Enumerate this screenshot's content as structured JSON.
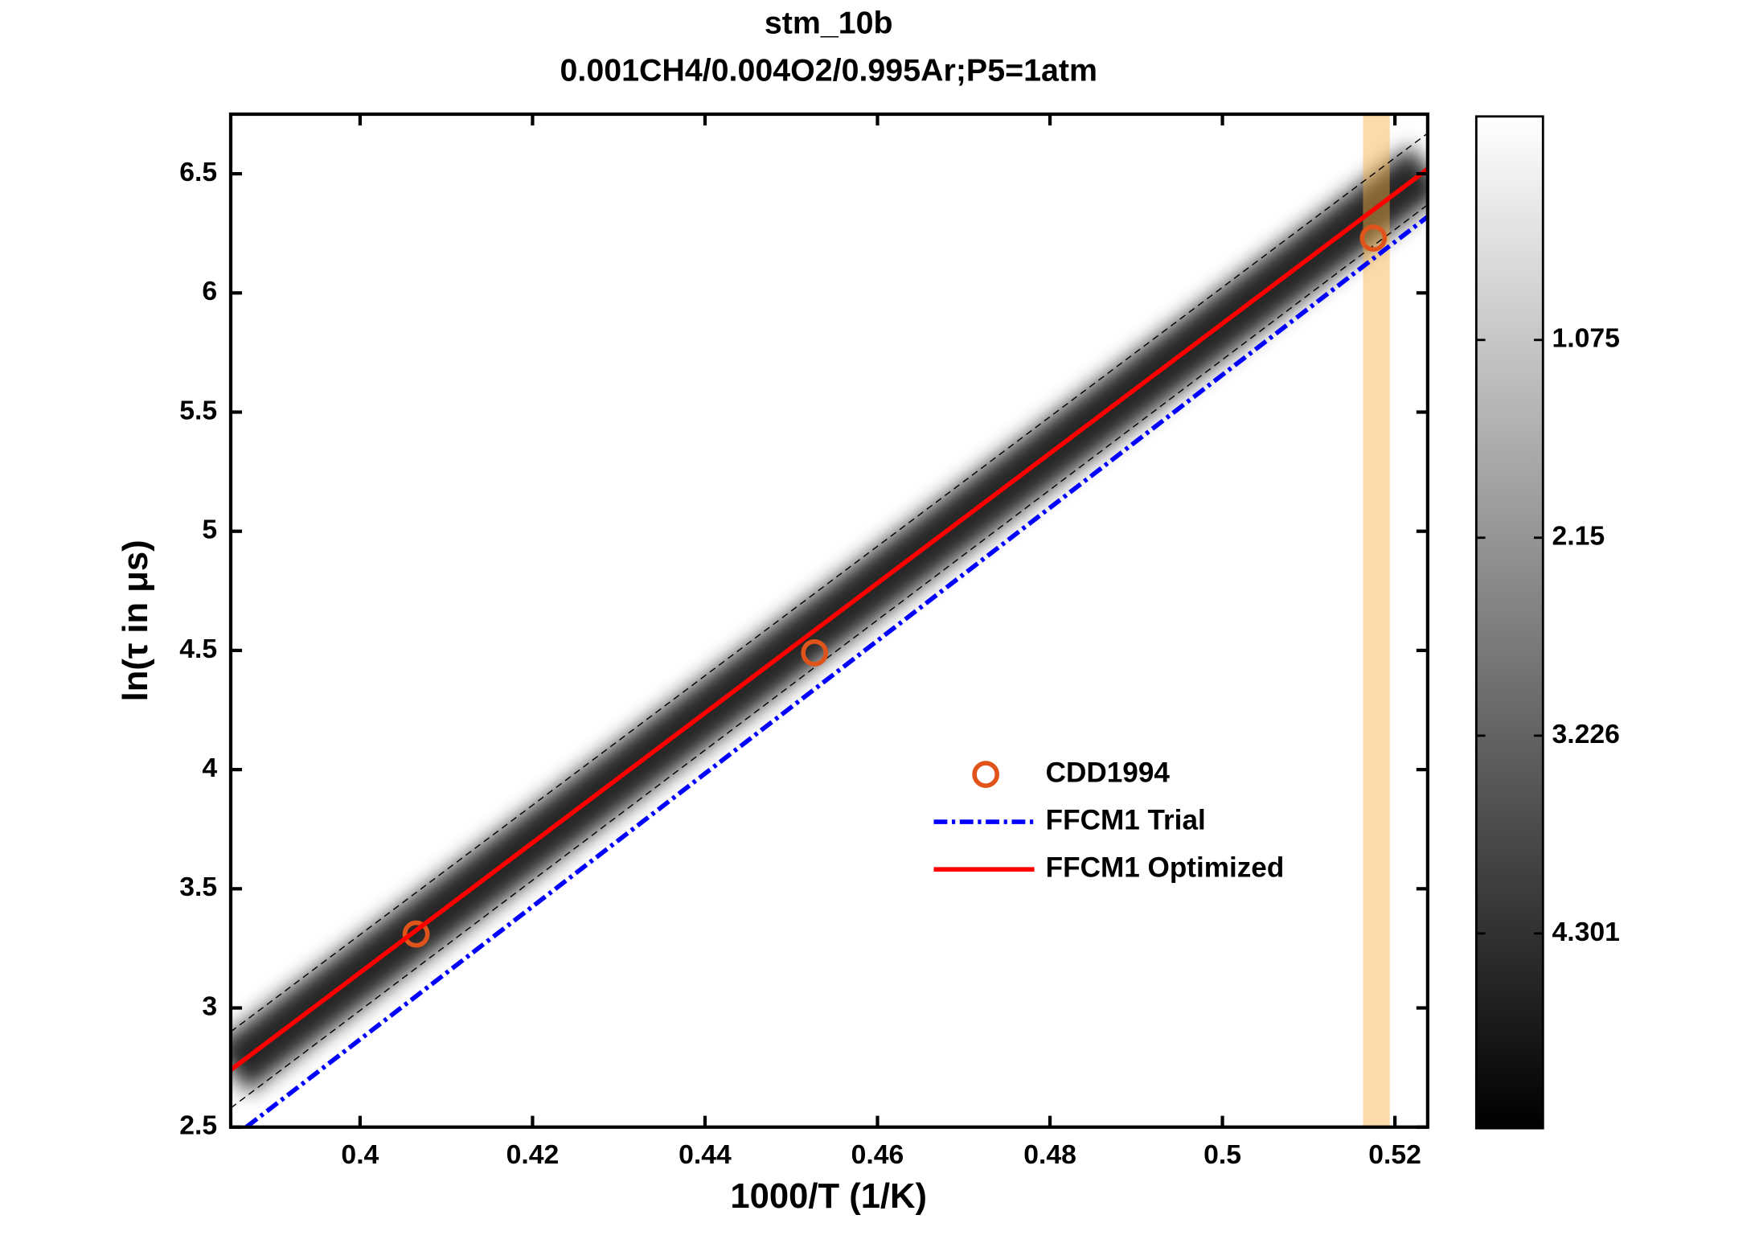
{
  "chart_data": {
    "type": "line",
    "title": "stm_10b",
    "subtitle": "0.001CH4/0.004O2/0.995Ar;P5=1atm",
    "x_label": "1000/T (1/K)",
    "y_label": "ln(τ in μs)",
    "xlim": [
      0.385,
      0.5238
    ],
    "ylim": [
      2.5,
      6.75
    ],
    "xticks": [
      0.4,
      0.42,
      0.44,
      0.46,
      0.48,
      0.5,
      0.52
    ],
    "yticks": [
      2.5,
      3,
      3.5,
      4,
      4.5,
      5,
      5.5,
      6,
      6.5
    ],
    "highlight_band": [
      0.5163,
      0.5194
    ],
    "series": [
      {
        "x": [
          0.385,
          0.5238
        ],
        "values": [
          2.9,
          6.67
        ],
        "color": "#000000",
        "style": "dashed"
      },
      {
        "x": [
          0.385,
          0.5238
        ],
        "values": [
          2.58,
          6.37
        ],
        "color": "#000000",
        "style": "dashed"
      },
      {
        "name": "CDD1994",
        "x": [
          0.4065,
          0.4527,
          0.5175
        ],
        "values": [
          3.31,
          4.49,
          6.23
        ],
        "color": "#e0541c",
        "style": "markers"
      },
      {
        "name": "FFCM1 Trial",
        "x": [
          0.3868,
          0.5238
        ],
        "values": [
          2.5,
          6.32
        ],
        "color": "#0000ff",
        "style": "dashdot"
      },
      {
        "name": "FFCM1 Optimized",
        "x": [
          0.385,
          0.5238
        ],
        "values": [
          2.74,
          6.52
        ],
        "color": "#ff0000",
        "style": "solid"
      }
    ],
    "colorbar": {
      "clim": [
        -0.14,
        5.36
      ],
      "ticks": [
        1.075,
        2.15,
        3.226,
        4.301
      ],
      "reversed": true
    }
  }
}
